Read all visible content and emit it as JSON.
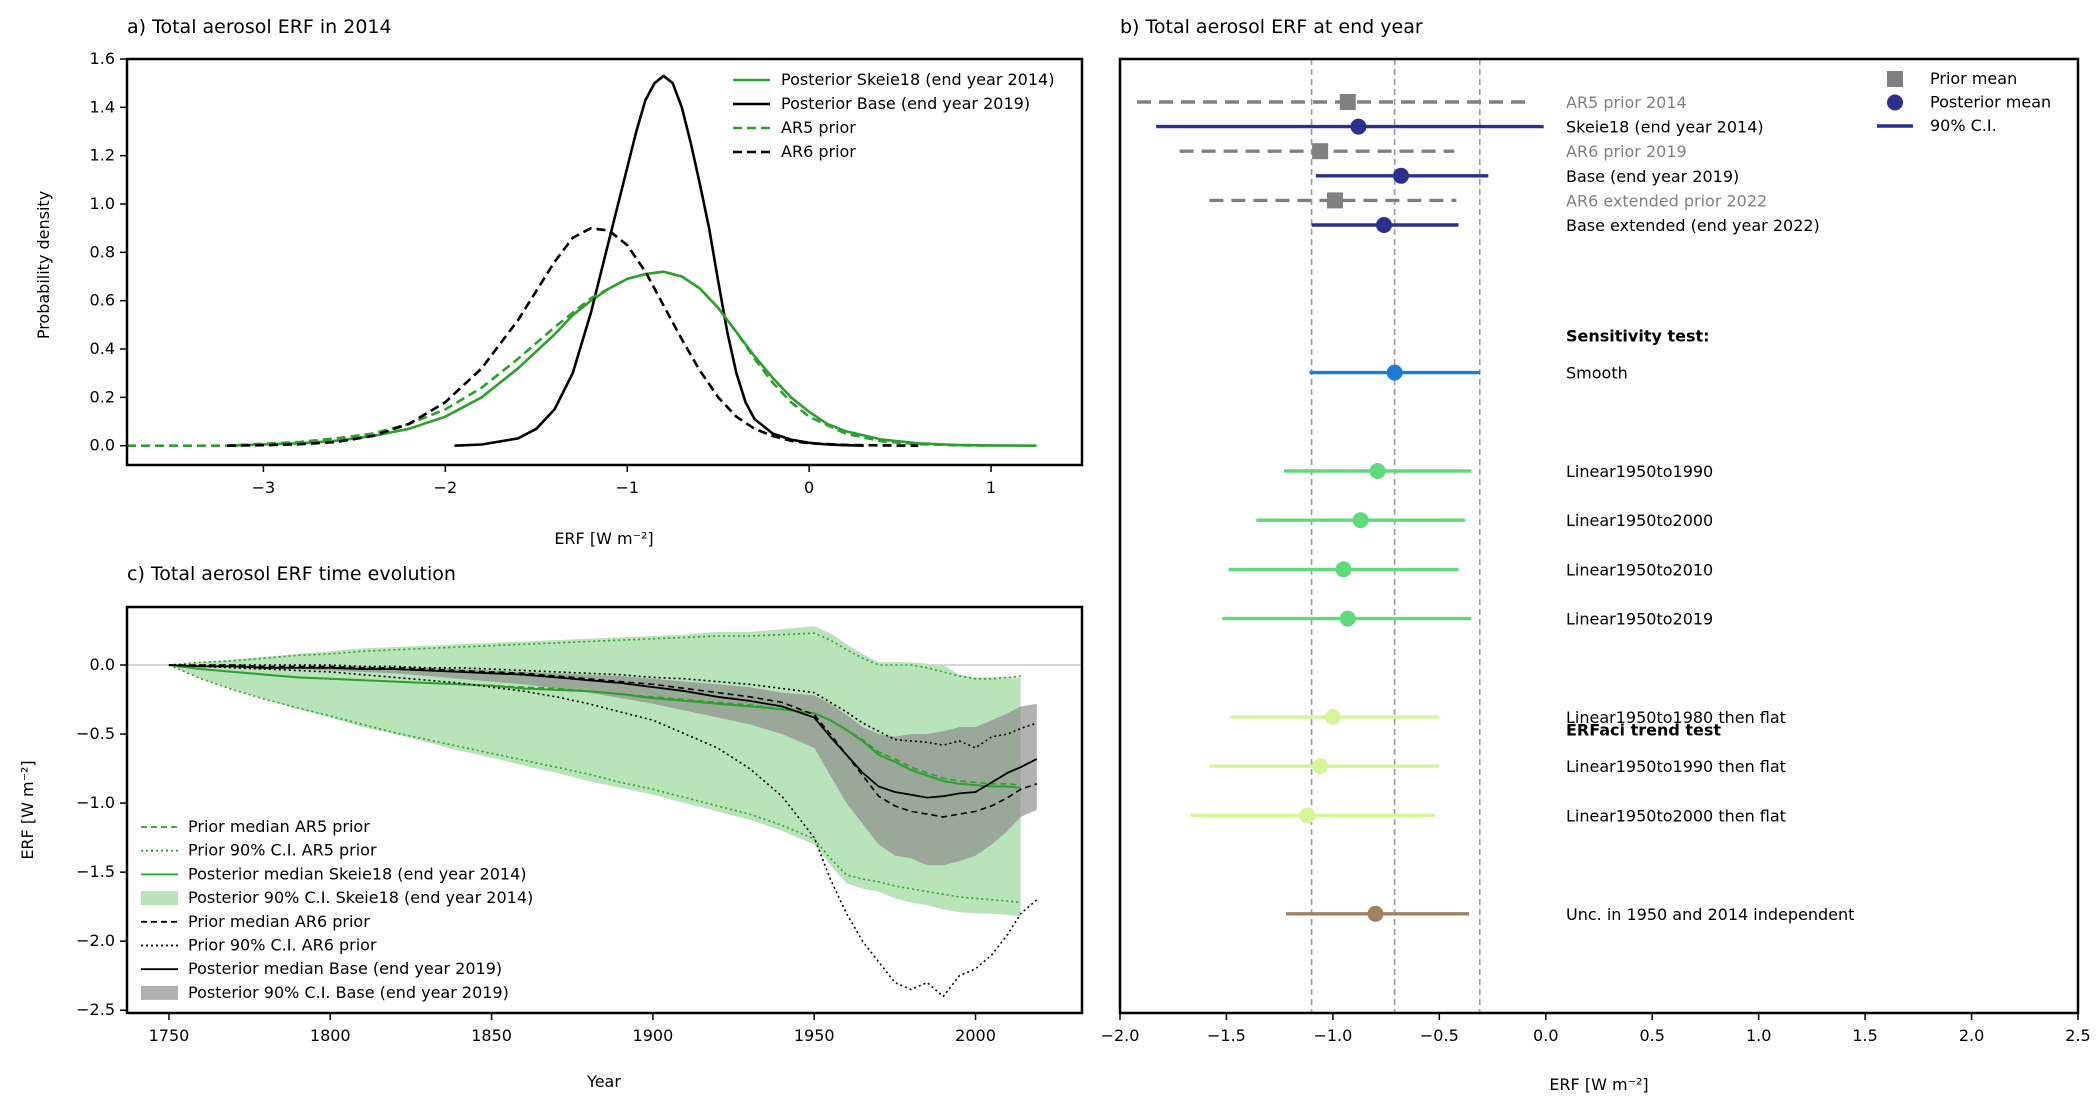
{
  "chart_data": [
    {
      "id": "a",
      "type": "line",
      "title": "a) Total aerosol ERF in 2014",
      "xlabel": "ERF [W m⁻²]",
      "ylabel": "Probability density",
      "xlim": [
        -3.75,
        1.5
      ],
      "ylim": [
        -0.08,
        1.6
      ],
      "xticks": [
        -3,
        -2,
        -1,
        0,
        1
      ],
      "yticks": [
        0.0,
        0.2,
        0.4,
        0.6,
        0.8,
        1.0,
        1.2,
        1.4,
        1.6
      ],
      "legend_position": "top-right",
      "series": [
        {
          "name": "Posterior Skeie18 (end year 2014)",
          "color": "#2ca02c",
          "style": "solid",
          "x": [
            -3.2,
            -3.0,
            -2.8,
            -2.6,
            -2.4,
            -2.2,
            -2.0,
            -1.8,
            -1.6,
            -1.4,
            -1.3,
            -1.2,
            -1.1,
            -1.0,
            -0.9,
            -0.8,
            -0.7,
            -0.6,
            -0.5,
            -0.4,
            -0.3,
            -0.2,
            -0.1,
            0.0,
            0.1,
            0.2,
            0.4,
            0.6,
            0.8,
            1.0,
            1.25
          ],
          "y": [
            0.0,
            0.005,
            0.01,
            0.02,
            0.04,
            0.07,
            0.12,
            0.2,
            0.32,
            0.46,
            0.54,
            0.6,
            0.65,
            0.69,
            0.71,
            0.72,
            0.7,
            0.65,
            0.57,
            0.47,
            0.37,
            0.28,
            0.2,
            0.14,
            0.09,
            0.06,
            0.025,
            0.01,
            0.003,
            0.001,
            0.0
          ]
        },
        {
          "name": "Posterior Base (end year 2019)",
          "color": "#000000",
          "style": "solid",
          "x": [
            -1.95,
            -1.8,
            -1.6,
            -1.5,
            -1.4,
            -1.3,
            -1.2,
            -1.1,
            -1.0,
            -0.95,
            -0.9,
            -0.85,
            -0.8,
            -0.75,
            -0.7,
            -0.65,
            -0.6,
            -0.55,
            -0.5,
            -0.45,
            -0.4,
            -0.35,
            -0.3,
            -0.2,
            -0.1,
            0.0,
            0.1,
            0.2,
            0.3
          ],
          "y": [
            0.0,
            0.005,
            0.03,
            0.07,
            0.15,
            0.3,
            0.55,
            0.85,
            1.15,
            1.3,
            1.43,
            1.5,
            1.53,
            1.5,
            1.4,
            1.25,
            1.08,
            0.9,
            0.68,
            0.47,
            0.3,
            0.18,
            0.11,
            0.05,
            0.025,
            0.012,
            0.005,
            0.002,
            0.0
          ]
        },
        {
          "name": "AR5 prior",
          "color": "#2ca02c",
          "style": "dashed",
          "x": [
            -3.75,
            -3.2,
            -3.0,
            -2.8,
            -2.6,
            -2.4,
            -2.2,
            -2.0,
            -1.8,
            -1.6,
            -1.4,
            -1.2,
            -1.0,
            -0.9,
            -0.8,
            -0.7,
            -0.6,
            -0.5,
            -0.4,
            -0.3,
            -0.2,
            -0.1,
            0.0,
            0.2,
            0.4,
            0.6,
            0.8,
            1.0
          ],
          "y": [
            0.0,
            0.0,
            0.008,
            0.015,
            0.03,
            0.05,
            0.09,
            0.15,
            0.24,
            0.36,
            0.49,
            0.61,
            0.69,
            0.71,
            0.72,
            0.7,
            0.65,
            0.57,
            0.47,
            0.36,
            0.26,
            0.18,
            0.12,
            0.05,
            0.018,
            0.006,
            0.002,
            0.0
          ]
        },
        {
          "name": "AR6 prior",
          "color": "#000000",
          "style": "dashed",
          "x": [
            -3.2,
            -3.0,
            -2.8,
            -2.6,
            -2.4,
            -2.2,
            -2.0,
            -1.8,
            -1.6,
            -1.5,
            -1.4,
            -1.3,
            -1.2,
            -1.1,
            -1.0,
            -0.9,
            -0.8,
            -0.7,
            -0.6,
            -0.5,
            -0.4,
            -0.3,
            -0.2,
            -0.1,
            0.0,
            0.2,
            0.4,
            0.6
          ],
          "y": [
            0.0,
            0.002,
            0.006,
            0.015,
            0.04,
            0.09,
            0.18,
            0.32,
            0.52,
            0.64,
            0.76,
            0.86,
            0.9,
            0.89,
            0.83,
            0.72,
            0.58,
            0.44,
            0.31,
            0.2,
            0.12,
            0.07,
            0.04,
            0.02,
            0.01,
            0.003,
            0.001,
            0.0
          ]
        }
      ]
    },
    {
      "id": "b",
      "type": "scatter",
      "title": "b) Total aerosol ERF at end year",
      "xlabel": "ERF [W m⁻²]",
      "xlim": [
        -2.0,
        2.5
      ],
      "xticks": [
        -2.0,
        -1.5,
        -1.0,
        -0.5,
        0.0,
        0.5,
        1.0,
        1.5,
        2.0,
        2.5
      ],
      "reference_lines": [
        -1.1,
        -0.71,
        -0.31
      ],
      "legend_position": "top-right",
      "legend": [
        "Prior mean",
        "Posterior mean",
        "90% C.I."
      ],
      "section_labels": [
        {
          "text": "Sensitivity test:",
          "row": 9.5
        },
        {
          "text": "ERFaci trend test",
          "row": 25.5
        }
      ],
      "rows": [
        {
          "label": "AR5 prior 2014",
          "kind": "prior",
          "mean": -0.93,
          "lo": -1.92,
          "hi": -0.08,
          "color": "#808080",
          "label_color": "#808080",
          "row": 0
        },
        {
          "label": "Skeie18 (end year 2014)",
          "kind": "posterior",
          "mean": -0.88,
          "lo": -1.83,
          "hi": -0.01,
          "color": "#2b2f8f",
          "label_color": "#000000",
          "row": 1
        },
        {
          "label": "AR6 prior 2019",
          "kind": "prior",
          "mean": -1.06,
          "lo": -1.72,
          "hi": -0.43,
          "color": "#808080",
          "label_color": "#808080",
          "row": 2
        },
        {
          "label": "Base (end year 2019)",
          "kind": "posterior",
          "mean": -0.68,
          "lo": -1.08,
          "hi": -0.27,
          "color": "#2b2f8f",
          "label_color": "#000000",
          "row": 3
        },
        {
          "label": "AR6 extended prior 2022",
          "kind": "prior",
          "mean": -0.99,
          "lo": -1.58,
          "hi": -0.42,
          "color": "#808080",
          "label_color": "#808080",
          "row": 4
        },
        {
          "label": "Base extended (end year 2022)",
          "kind": "posterior",
          "mean": -0.76,
          "lo": -1.1,
          "hi": -0.41,
          "color": "#2b2f8f",
          "label_color": "#000000",
          "row": 5
        },
        {
          "label": "Smooth",
          "kind": "posterior",
          "mean": -0.71,
          "lo": -1.11,
          "hi": -0.31,
          "color": "#1a7fd4",
          "label_color": "#000000",
          "row": 11
        },
        {
          "label": "Linear1950to1990",
          "kind": "posterior",
          "mean": -0.79,
          "lo": -1.23,
          "hi": -0.35,
          "color": "#5edb7a",
          "label_color": "#000000",
          "row": 15
        },
        {
          "label": "Linear1950to2000",
          "kind": "posterior",
          "mean": -0.87,
          "lo": -1.36,
          "hi": -0.38,
          "color": "#5edb7a",
          "label_color": "#000000",
          "row": 17
        },
        {
          "label": "Linear1950to2010",
          "kind": "posterior",
          "mean": -0.95,
          "lo": -1.49,
          "hi": -0.41,
          "color": "#5edb7a",
          "label_color": "#000000",
          "row": 19
        },
        {
          "label": "Linear1950to2019",
          "kind": "posterior",
          "mean": -0.93,
          "lo": -1.52,
          "hi": -0.35,
          "color": "#5edb7a",
          "label_color": "#000000",
          "row": 21
        },
        {
          "label": "Linear1950to1980 then flat",
          "kind": "posterior",
          "mean": -1.0,
          "lo": -1.48,
          "hi": -0.5,
          "color": "#d6f59a",
          "label_color": "#000000",
          "row": 25
        },
        {
          "label": "Linear1950to1990 then flat",
          "kind": "posterior",
          "mean": -1.06,
          "lo": -1.58,
          "hi": -0.5,
          "color": "#d6f59a",
          "label_color": "#000000",
          "row": 27
        },
        {
          "label": "Linear1950to2000 then flat",
          "kind": "posterior",
          "mean": -1.12,
          "lo": -1.67,
          "hi": -0.52,
          "color": "#d6f59a",
          "label_color": "#000000",
          "row": 29
        },
        {
          "label": "Unc. in 1950 and 2014 independent",
          "kind": "posterior",
          "mean": -0.8,
          "lo": -1.22,
          "hi": -0.36,
          "color": "#a08260",
          "label_color": "#000000",
          "row": 33
        }
      ]
    },
    {
      "id": "c",
      "type": "line",
      "title": "c) Total aerosol ERF time evolution",
      "xlabel": "Year",
      "ylabel": "ERF [W m⁻²]",
      "xlim": [
        1737,
        2033
      ],
      "ylim": [
        -2.52,
        0.42
      ],
      "xticks": [
        1750,
        1800,
        1850,
        1900,
        1950,
        2000
      ],
      "yticks": [
        0.0,
        -0.5,
        -1.0,
        -1.5,
        -2.0,
        -2.5
      ],
      "legend_position": "bottom-left",
      "legend": [
        "Prior median AR5 prior",
        "Prior 90% C.I. AR5 prior",
        "Posterior median Skeie18 (end year 2014)",
        "Posterior 90% C.I. Skeie18 (end year 2014)",
        "Prior median AR6 prior",
        "Prior 90% C.I. AR6 prior",
        "Posterior median Base (end year 2019)",
        "Posterior 90% C.I. Base (end year 2019)"
      ],
      "years": [
        1750,
        1760,
        1770,
        1780,
        1790,
        1800,
        1810,
        1820,
        1830,
        1840,
        1850,
        1860,
        1870,
        1880,
        1890,
        1900,
        1910,
        1920,
        1930,
        1940,
        1950,
        1955,
        1960,
        1965,
        1970,
        1975,
        1980,
        1985,
        1990,
        1995,
        2000,
        2005,
        2010,
        2014,
        2019
      ],
      "skeie_upper": [
        0.0,
        0.02,
        0.04,
        0.06,
        0.08,
        0.1,
        0.12,
        0.13,
        0.14,
        0.15,
        0.16,
        0.17,
        0.18,
        0.19,
        0.2,
        0.21,
        0.22,
        0.24,
        0.24,
        0.26,
        0.28,
        0.23,
        0.15,
        0.08,
        0.02,
        0.02,
        0.02,
        0.01,
        0.0,
        -0.07,
        -0.09,
        -0.09,
        -0.09,
        -0.09,
        null
      ],
      "skeie_lower": [
        0.0,
        -0.1,
        -0.18,
        -0.25,
        -0.32,
        -0.38,
        -0.45,
        -0.5,
        -0.56,
        -0.62,
        -0.67,
        -0.73,
        -0.78,
        -0.84,
        -0.89,
        -0.94,
        -1.0,
        -1.06,
        -1.12,
        -1.2,
        -1.3,
        -1.45,
        -1.58,
        -1.62,
        -1.64,
        -1.69,
        -1.72,
        -1.74,
        -1.77,
        -1.79,
        -1.8,
        -1.8,
        -1.81,
        -1.82,
        null
      ],
      "skeie_median": [
        0.0,
        -0.03,
        -0.05,
        -0.07,
        -0.09,
        -0.1,
        -0.11,
        -0.12,
        -0.13,
        -0.14,
        -0.15,
        -0.17,
        -0.18,
        -0.19,
        -0.21,
        -0.24,
        -0.26,
        -0.28,
        -0.3,
        -0.32,
        -0.35,
        -0.4,
        -0.47,
        -0.55,
        -0.65,
        -0.7,
        -0.76,
        -0.8,
        -0.84,
        -0.86,
        -0.87,
        -0.88,
        -0.88,
        -0.89,
        null
      ],
      "ar5_median": [
        0.0,
        -0.03,
        -0.05,
        -0.07,
        -0.09,
        -0.1,
        -0.11,
        -0.12,
        -0.13,
        -0.14,
        -0.15,
        -0.16,
        -0.17,
        -0.19,
        -0.21,
        -0.23,
        -0.25,
        -0.27,
        -0.29,
        -0.32,
        -0.35,
        -0.4,
        -0.47,
        -0.54,
        -0.63,
        -0.68,
        -0.74,
        -0.78,
        -0.82,
        -0.84,
        -0.85,
        -0.86,
        -0.86,
        -0.87,
        null
      ],
      "ar5_upper": [
        0.0,
        0.02,
        0.03,
        0.05,
        0.07,
        0.08,
        0.1,
        0.11,
        0.12,
        0.13,
        0.14,
        0.15,
        0.16,
        0.17,
        0.18,
        0.19,
        0.2,
        0.21,
        0.21,
        0.22,
        0.23,
        0.18,
        0.11,
        0.05,
        0.0,
        0.0,
        0.0,
        -0.02,
        -0.05,
        -0.08,
        -0.1,
        -0.1,
        -0.09,
        -0.08,
        null
      ],
      "ar5_lower": [
        0.0,
        -0.1,
        -0.18,
        -0.25,
        -0.31,
        -0.37,
        -0.43,
        -0.49,
        -0.54,
        -0.59,
        -0.64,
        -0.69,
        -0.74,
        -0.79,
        -0.85,
        -0.9,
        -0.96,
        -1.02,
        -1.08,
        -1.16,
        -1.26,
        -1.4,
        -1.52,
        -1.55,
        -1.57,
        -1.6,
        -1.62,
        -1.64,
        -1.66,
        -1.68,
        -1.69,
        -1.7,
        -1.71,
        -1.72,
        null
      ],
      "base_upper": [
        0.0,
        0.0,
        0.0,
        -0.01,
        -0.01,
        -0.01,
        -0.01,
        -0.02,
        -0.02,
        -0.03,
        -0.04,
        -0.05,
        -0.06,
        -0.07,
        -0.08,
        -0.1,
        -0.12,
        -0.14,
        -0.16,
        -0.2,
        -0.22,
        -0.28,
        -0.36,
        -0.45,
        -0.5,
        -0.52,
        -0.5,
        -0.5,
        -0.48,
        -0.45,
        -0.45,
        -0.4,
        -0.35,
        -0.3,
        -0.28
      ],
      "base_lower": [
        0.0,
        -0.01,
        -0.02,
        -0.03,
        -0.03,
        -0.04,
        -0.05,
        -0.06,
        -0.08,
        -0.1,
        -0.12,
        -0.14,
        -0.17,
        -0.2,
        -0.24,
        -0.28,
        -0.33,
        -0.38,
        -0.43,
        -0.5,
        -0.6,
        -0.8,
        -1.0,
        -1.15,
        -1.3,
        -1.38,
        -1.4,
        -1.45,
        -1.45,
        -1.42,
        -1.38,
        -1.3,
        -1.2,
        -1.1,
        -1.05
      ],
      "base_median": [
        0.0,
        -0.01,
        -0.01,
        -0.02,
        -0.02,
        -0.02,
        -0.03,
        -0.03,
        -0.04,
        -0.05,
        -0.06,
        -0.07,
        -0.09,
        -0.11,
        -0.13,
        -0.16,
        -0.19,
        -0.23,
        -0.26,
        -0.3,
        -0.38,
        -0.52,
        -0.65,
        -0.78,
        -0.88,
        -0.92,
        -0.94,
        -0.96,
        -0.95,
        -0.93,
        -0.92,
        -0.85,
        -0.78,
        -0.74,
        -0.68
      ],
      "ar6_median": [
        0.0,
        0.0,
        0.0,
        -0.01,
        -0.01,
        -0.01,
        -0.02,
        -0.02,
        -0.03,
        -0.04,
        -0.05,
        -0.06,
        -0.08,
        -0.1,
        -0.12,
        -0.14,
        -0.17,
        -0.2,
        -0.23,
        -0.27,
        -0.36,
        -0.5,
        -0.65,
        -0.8,
        -0.95,
        -1.02,
        -1.06,
        -1.08,
        -1.1,
        -1.08,
        -1.06,
        -1.02,
        -0.96,
        -0.9,
        -0.86
      ],
      "ar6_upper": [
        0.0,
        0.0,
        0.0,
        0.0,
        0.0,
        0.0,
        -0.01,
        -0.01,
        -0.02,
        -0.02,
        -0.03,
        -0.04,
        -0.05,
        -0.06,
        -0.07,
        -0.09,
        -0.1,
        -0.12,
        -0.14,
        -0.17,
        -0.2,
        -0.27,
        -0.34,
        -0.42,
        -0.48,
        -0.54,
        -0.55,
        -0.56,
        -0.58,
        -0.55,
        -0.6,
        -0.52,
        -0.5,
        -0.46,
        -0.42
      ],
      "ar6_lower": [
        0.0,
        -0.01,
        -0.02,
        -0.03,
        -0.04,
        -0.05,
        -0.07,
        -0.09,
        -0.11,
        -0.13,
        -0.16,
        -0.19,
        -0.23,
        -0.28,
        -0.34,
        -0.4,
        -0.5,
        -0.6,
        -0.75,
        -0.95,
        -1.25,
        -1.55,
        -1.8,
        -2.0,
        -2.15,
        -2.3,
        -2.35,
        -2.3,
        -2.4,
        -2.25,
        -2.2,
        -2.1,
        -1.95,
        -1.8,
        -1.7
      ],
      "colors": {
        "skeie_fill": "#b9e3b9",
        "base_fill": "#8c8c8c",
        "skeie_line": "#2ca02c",
        "base_line": "#000000"
      }
    }
  ]
}
